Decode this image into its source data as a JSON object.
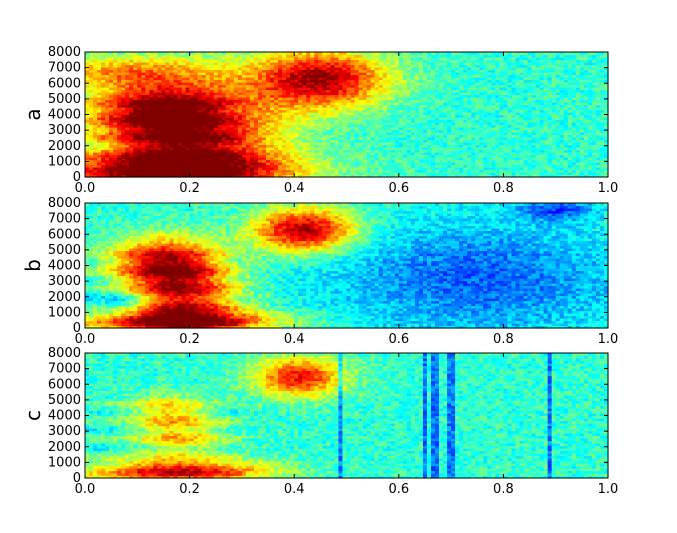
{
  "chart_data": [
    {
      "type": "heatmap",
      "ylabel": "a",
      "xlim": [
        0.0,
        1.0
      ],
      "ylim": [
        0,
        8000
      ],
      "xticks": [
        "0.0",
        "0.2",
        "0.4",
        "0.6",
        "0.8",
        "1.0"
      ],
      "yticks": [
        "0",
        "1000",
        "2000",
        "3000",
        "4000",
        "5000",
        "6000",
        "7000",
        "8000"
      ],
      "colormap": "jet",
      "noise": 0.32,
      "blobs": [
        {
          "x": 0.2,
          "y": 2200,
          "sx": 0.12,
          "sy": 2600,
          "v": 0.55
        },
        {
          "x": 0.14,
          "y": 4300,
          "sx": 0.09,
          "sy": 1200,
          "v": 0.35
        },
        {
          "x": 0.15,
          "y": 500,
          "sx": 0.18,
          "sy": 700,
          "v": 0.4
        },
        {
          "x": 0.45,
          "y": 6300,
          "sx": 0.09,
          "sy": 1300,
          "v": 0.55
        },
        {
          "x": 0.07,
          "y": 6800,
          "sx": 0.12,
          "sy": 700,
          "v": 0.25
        }
      ],
      "dips": []
    },
    {
      "type": "heatmap",
      "ylabel": "b",
      "xlim": [
        0.0,
        1.0
      ],
      "ylim": [
        0,
        8000
      ],
      "xticks": [
        "0.0",
        "0.2",
        "0.4",
        "0.6",
        "0.8",
        "1.0"
      ],
      "yticks": [
        "0",
        "1000",
        "2000",
        "3000",
        "4000",
        "5000",
        "6000",
        "7000",
        "8000"
      ],
      "colormap": "jet",
      "noise": 0.1,
      "blobs": [
        {
          "x": 0.15,
          "y": 4300,
          "sx": 0.07,
          "sy": 1100,
          "v": 0.45
        },
        {
          "x": 0.19,
          "y": 2200,
          "sx": 0.07,
          "sy": 1500,
          "v": 0.45
        },
        {
          "x": 0.18,
          "y": 500,
          "sx": 0.13,
          "sy": 500,
          "v": 0.55
        },
        {
          "x": 0.42,
          "y": 6300,
          "sx": 0.07,
          "sy": 1000,
          "v": 0.55
        }
      ],
      "dips": [
        {
          "x": 0.75,
          "y": 3200,
          "sx": 0.2,
          "sy": 2600,
          "v": 0.2
        },
        {
          "x": 0.9,
          "y": 7600,
          "sx": 0.05,
          "sy": 500,
          "v": 0.2
        },
        {
          "x": 0.07,
          "y": 1600,
          "sx": 0.04,
          "sy": 500,
          "v": 0.15
        }
      ]
    },
    {
      "type": "heatmap",
      "ylabel": "c",
      "xlim": [
        0.0,
        1.0
      ],
      "ylim": [
        0,
        8000
      ],
      "xticks": [
        "0.0",
        "0.2",
        "0.4",
        "0.6",
        "0.8",
        "1.0"
      ],
      "yticks": [
        "0",
        "1000",
        "2000",
        "3000",
        "4000",
        "5000",
        "6000",
        "7000",
        "8000"
      ],
      "colormap": "jet",
      "noise": 0.08,
      "blobs": [
        {
          "x": 0.16,
          "y": 4400,
          "sx": 0.05,
          "sy": 700,
          "v": 0.22
        },
        {
          "x": 0.18,
          "y": 2700,
          "sx": 0.06,
          "sy": 900,
          "v": 0.25
        },
        {
          "x": 0.18,
          "y": 500,
          "sx": 0.12,
          "sy": 500,
          "v": 0.5
        },
        {
          "x": 0.41,
          "y": 6500,
          "sx": 0.06,
          "sy": 900,
          "v": 0.45
        }
      ],
      "dips": [],
      "stripes": [
        0.49,
        0.65,
        0.67,
        0.7,
        0.89
      ]
    }
  ]
}
